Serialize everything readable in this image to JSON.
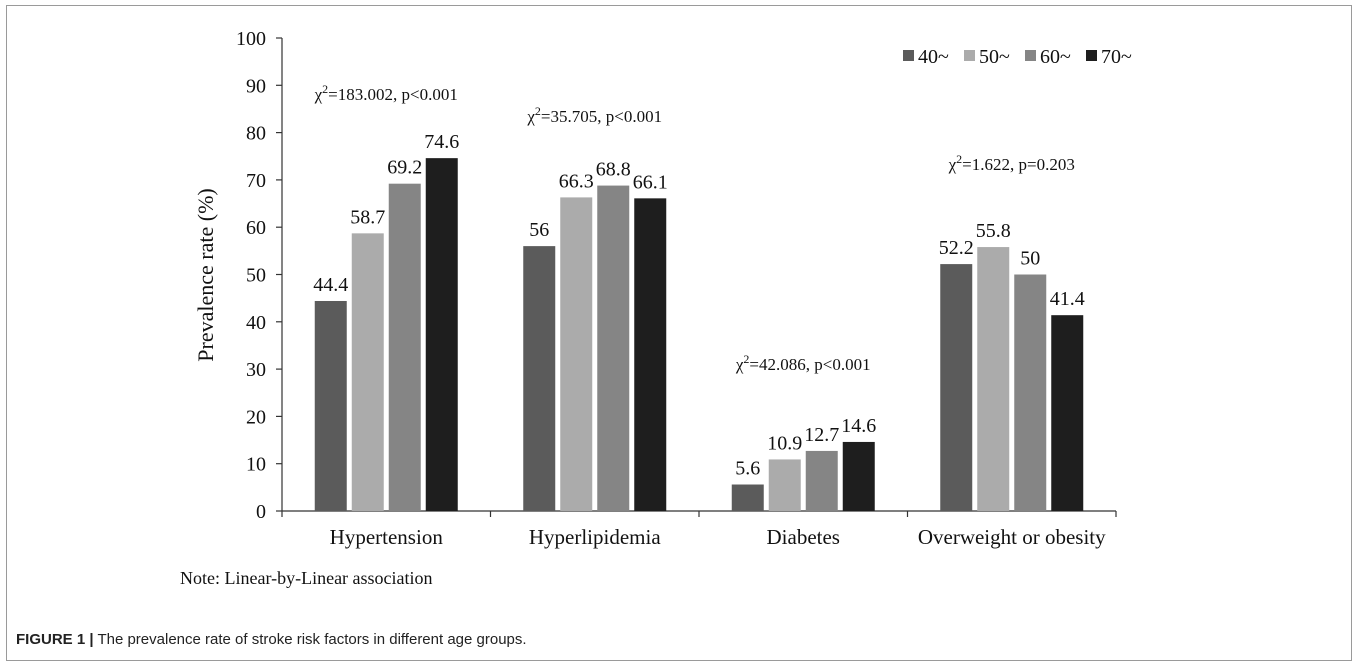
{
  "chart_data": {
    "type": "bar",
    "ylabel": "Prevalence rate (%)",
    "xlabel": "",
    "ylim": [
      0,
      100
    ],
    "yticks": [
      "0",
      "10",
      "20",
      "30",
      "40",
      "50",
      "60",
      "70",
      "80",
      "90",
      "100"
    ],
    "categories": [
      "Hypertension",
      "Hyperlipidemia",
      "Diabetes",
      "Overweight or obesity"
    ],
    "series": [
      {
        "name": "40~",
        "color": "#5b5b5b",
        "values": [
          44.4,
          56,
          5.6,
          52.2
        ]
      },
      {
        "name": "50~",
        "color": "#ababab",
        "values": [
          58.7,
          66.3,
          10.9,
          55.8
        ]
      },
      {
        "name": "60~",
        "color": "#858585",
        "values": [
          69.2,
          68.8,
          12.7,
          50
        ]
      },
      {
        "name": "70~",
        "color": "#1e1e1e",
        "values": [
          74.6,
          66.1,
          14.6,
          41.4
        ]
      }
    ],
    "data_labels": [
      [
        "44.4",
        "56",
        "5.6",
        "52.2"
      ],
      [
        "58.7",
        "66.3",
        "10.9",
        "55.8"
      ],
      [
        "69.2",
        "68.8",
        "12.7",
        "50"
      ],
      [
        "74.6",
        "66.1",
        "14.6",
        "41.4"
      ]
    ],
    "annotations": [
      {
        "category": "Hypertension",
        "prefix": "χ",
        "sup": "2",
        "text": "=183.002, p<0.001"
      },
      {
        "category": "Hyperlipidemia",
        "prefix": "χ",
        "sup": "2",
        "text": "=35.705, p<0.001"
      },
      {
        "category": "Diabetes",
        "prefix": "χ",
        "sup": "2",
        "text": "=42.086, p<0.001"
      },
      {
        "category": "Overweight or obesity",
        "prefix": "χ",
        "sup": "2",
        "text": "=1.622, p=0.203"
      }
    ],
    "legend_position": "top-right",
    "grid": false,
    "note": "Note: Linear-by-Linear association"
  },
  "caption": {
    "label": "FIGURE 1 |",
    "text": " The prevalence rate of stroke risk factors in different age groups."
  }
}
